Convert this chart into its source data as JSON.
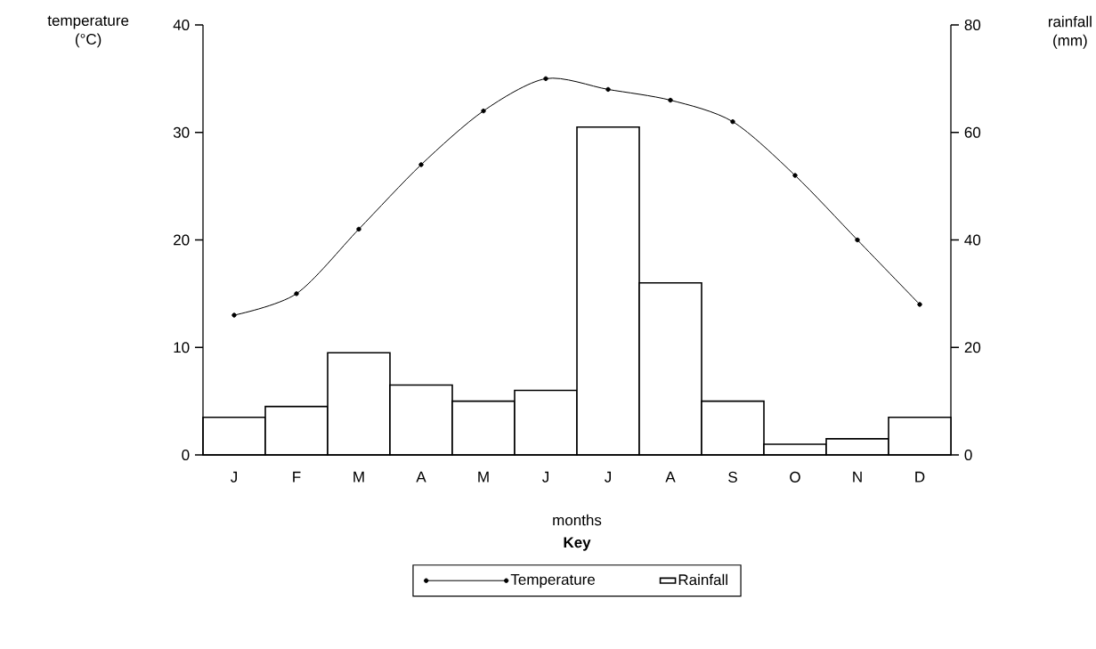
{
  "chart_data": {
    "type": "line",
    "ylabel": "temperature (°C)",
    "y2label": "rainfall (mm)",
    "xlabel": "months",
    "legend_title": "Key",
    "legend": "bottom",
    "marker": "circle",
    "categories": [
      "J",
      "F",
      "M",
      "A",
      "M",
      "J",
      "J",
      "A",
      "S",
      "O",
      "N",
      "D"
    ],
    "ylim": [
      0,
      40
    ],
    "yticks": [
      0,
      10,
      20,
      30,
      40
    ],
    "y2lim": [
      0,
      80
    ],
    "y2ticks": [
      0,
      20,
      40,
      60,
      80
    ],
    "series": [
      {
        "name": "Temperature",
        "color": "#000000",
        "values": [
          13,
          15,
          21,
          27,
          32,
          35,
          34,
          33,
          31,
          26,
          20,
          14
        ]
      },
      {
        "name": "Rainfall",
        "type": "bar",
        "axis": "y2",
        "color": "#000000",
        "values": [
          7,
          9,
          19,
          13,
          10,
          12,
          61,
          32,
          10,
          2,
          3,
          7
        ]
      }
    ]
  }
}
